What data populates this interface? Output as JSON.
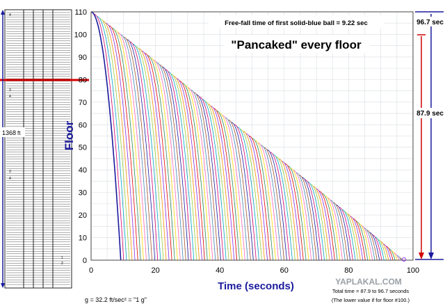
{
  "chart_data": {
    "type": "line",
    "title": "\"Pancaked\" every floor",
    "annotation_top": "Free-fall time of first solid-blue ball  =  9.22 sec",
    "xlabel": "Time  (seconds)",
    "ylabel": "Floor",
    "xlim": [
      0,
      100
    ],
    "ylim": [
      0,
      110
    ],
    "xticks": [
      "0",
      "20",
      "40",
      "60",
      "80",
      "100"
    ],
    "yticks": [
      "0",
      "10",
      "20",
      "30",
      "40",
      "50",
      "60",
      "70",
      "80",
      "90",
      "100",
      "110"
    ],
    "grid": true,
    "start_floor": 110,
    "first_ball_fall_time": 9.22,
    "pancake_curve": [
      [
        0,
        110
      ],
      [
        20,
        88
      ],
      [
        40,
        65
      ],
      [
        60,
        43
      ],
      [
        80,
        20
      ],
      [
        96.7,
        0
      ]
    ],
    "palette": [
      "#1a1a9e",
      "#d4006f",
      "#00a0c6",
      "#9acd32",
      "#ff8c00",
      "#8a2be2",
      "#e60000",
      "#2e8b57",
      "#ffd700",
      "#ff69b4",
      "#4682b4",
      "#a0522d"
    ],
    "formula": "g = 32.2 ft/sec² = \"1 g\"",
    "total_time_note": "Total time = 87.9 to 96.7 seconds",
    "lower_value_note": "(The lower value if for floor #100.)"
  },
  "building": {
    "height_label": "1368",
    "height_unit": "ft",
    "markers": [
      "4",
      "3",
      "4",
      "3",
      "4",
      "1",
      "2"
    ]
  },
  "right_annotations": {
    "top_label": "96.7 sec",
    "mid_label": "87.9 sec"
  },
  "watermark": "YAPLAKAL.COM"
}
